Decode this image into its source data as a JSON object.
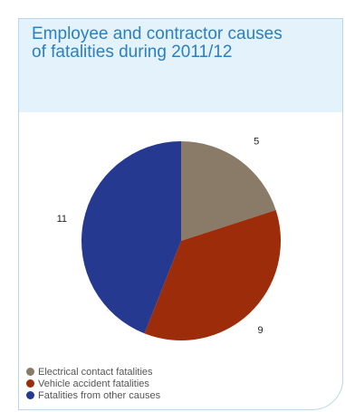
{
  "header": {
    "title_line1": "Employee and contractor causes",
    "title_line2": "of fatalities during 2011/12"
  },
  "chart_data": {
    "type": "pie",
    "title": "Employee and contractor causes of fatalities during 2011/12",
    "categories": [
      "Electrical contact fatalities",
      "Vehicle accident fatalities",
      "Fatalities from other causes"
    ],
    "values": [
      5,
      9,
      11
    ],
    "value_labels": [
      "5",
      "9",
      "11"
    ],
    "colors": [
      "#8a7a68",
      "#9c2c0a",
      "#24398f"
    ],
    "start_angle_deg": 0,
    "direction": "clockwise",
    "legend_position": "bottom-left"
  },
  "legend": {
    "items": [
      {
        "label": "Electrical contact fatalities",
        "color": "#8a7a68"
      },
      {
        "label": "Vehicle accident fatalities",
        "color": "#9c2c0a"
      },
      {
        "label": "Fatalities from other causes",
        "color": "#24398f"
      }
    ]
  }
}
